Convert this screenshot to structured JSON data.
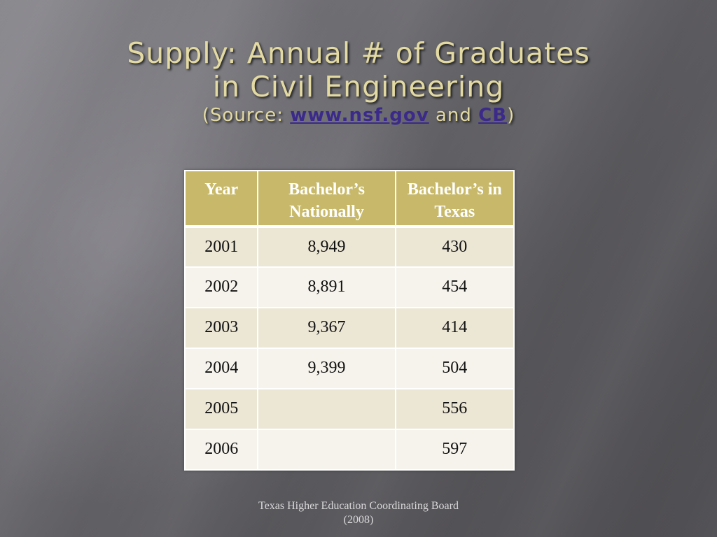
{
  "title": {
    "line1": "Supply: Annual # of Graduates",
    "line2": "in Civil Engineering",
    "source_open": "(Source: ",
    "source_link1": "www.nsf.gov",
    "source_and": " and ",
    "source_link2": "CB",
    "source_close": ")"
  },
  "table": {
    "headers": [
      "Year",
      "Bachelor’s Nationally",
      "Bachelor’s in Texas"
    ],
    "rows": [
      {
        "year": "2001",
        "national": "8,949",
        "texas": "430"
      },
      {
        "year": "2002",
        "national": "8,891",
        "texas": "454"
      },
      {
        "year": "2003",
        "national": "9,367",
        "texas": "414"
      },
      {
        "year": "2004",
        "national": "9,399",
        "texas": "504"
      },
      {
        "year": "2005",
        "national": "",
        "texas": "556"
      },
      {
        "year": "2006",
        "national": "",
        "texas": "597"
      }
    ]
  },
  "footer": "Texas Higher Education Coordinating Board (2008)",
  "colors": {
    "title": "#e3d9a2",
    "header_bg": "#c8b96a",
    "link": "#3b2a8a"
  }
}
